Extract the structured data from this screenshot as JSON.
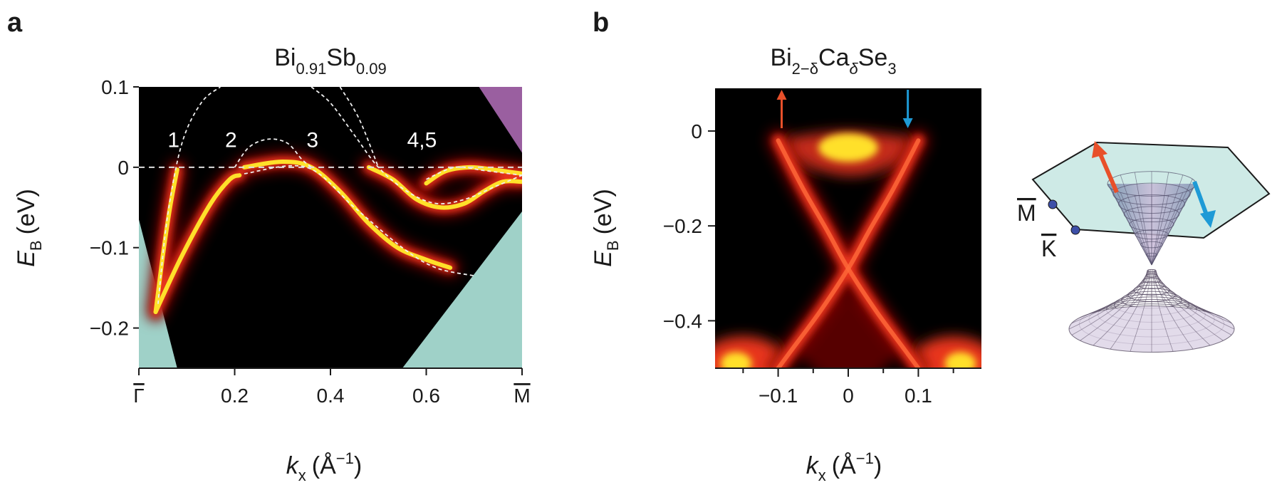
{
  "figure": {
    "panel_a_letter": "a",
    "panel_b_letter": "b",
    "hexagon_labels": {
      "m_bar": "M",
      "k_bar": "K"
    },
    "colors": {
      "background_dark": "#000000",
      "intensity_low": "#7a0000",
      "intensity_mid": "#e8341c",
      "intensity_high": "#ffe02a",
      "bulk_teal": "#9fd1c8",
      "bulk_purple": "#9a5fa0",
      "arrow_orange": "#e8502a",
      "arrow_blue": "#1e9ad6",
      "hex_fill": "#b9e1dc",
      "bz_point_dot": "#3d4fa8"
    }
  },
  "chart_data": [
    {
      "type": "heatmap",
      "panel": "a",
      "title_base1": "Bi",
      "title_sub1": "0.91",
      "title_base2": "Sb",
      "title_sub2": "0.09",
      "xlabel_base": "k",
      "xlabel_sub": "x",
      "xlabel_unit": "(Å",
      "xlabel_exp": "−1",
      "xlabel_close": ")",
      "ylabel_base": "E",
      "ylabel_sub": "B",
      "ylabel_unit": "(eV)",
      "xlim": [
        0.0,
        0.8
      ],
      "ylim": [
        -0.25,
        0.1
      ],
      "x_tick_labels": [
        "Γ",
        "0.2",
        "0.4",
        "0.6",
        "M"
      ],
      "x_ticks": [
        0.0,
        0.2,
        0.4,
        0.6,
        0.8
      ],
      "x_ticks_overbar": [
        true,
        false,
        false,
        false,
        true
      ],
      "y_ticks": [
        0.1,
        0.0,
        -0.1,
        -0.2
      ],
      "y_tick_labels": [
        "0.1",
        "0",
        "−0.1",
        "−0.2"
      ],
      "band_labels": [
        {
          "text": "1",
          "x": 0.06,
          "y": 0.025
        },
        {
          "text": "2",
          "x": 0.18,
          "y": 0.025
        },
        {
          "text": "3",
          "x": 0.35,
          "y": 0.025
        },
        {
          "text": "4,5",
          "x": 0.56,
          "y": 0.025
        }
      ],
      "fermi_level": 0.0,
      "bands": [
        {
          "name": "1",
          "points": [
            [
              0.035,
              -0.18
            ],
            [
              0.05,
              -0.11
            ],
            [
              0.065,
              -0.05
            ],
            [
              0.08,
              -0.003
            ]
          ]
        },
        {
          "name": "2",
          "points": [
            [
              0.035,
              -0.18
            ],
            [
              0.09,
              -0.11
            ],
            [
              0.15,
              -0.045
            ],
            [
              0.19,
              -0.015
            ],
            [
              0.21,
              -0.01
            ]
          ]
        },
        {
          "name": "3",
          "points": [
            [
              0.22,
              0.0
            ],
            [
              0.3,
              0.007
            ],
            [
              0.36,
              0.0
            ],
            [
              0.42,
              -0.03
            ],
            [
              0.48,
              -0.07
            ],
            [
              0.54,
              -0.1
            ],
            [
              0.6,
              -0.115
            ],
            [
              0.65,
              -0.125
            ]
          ]
        },
        {
          "name": "4,5",
          "points": [
            [
              0.48,
              0.0
            ],
            [
              0.53,
              -0.015
            ],
            [
              0.58,
              -0.04
            ],
            [
              0.63,
              -0.05
            ],
            [
              0.68,
              -0.045
            ],
            [
              0.72,
              -0.03
            ],
            [
              0.76,
              -0.018
            ],
            [
              0.8,
              -0.018
            ]
          ]
        },
        {
          "name": "4,5",
          "points": [
            [
              0.6,
              -0.02
            ],
            [
              0.64,
              -0.005
            ],
            [
              0.69,
              0.0
            ],
            [
              0.74,
              -0.003
            ],
            [
              0.8,
              -0.008
            ]
          ]
        }
      ],
      "dashed_guides": [
        {
          "points": [
            [
              0.04,
              -0.17
            ],
            [
              0.06,
              -0.06
            ],
            [
              0.09,
              0.03
            ],
            [
              0.13,
              0.08
            ],
            [
              0.17,
              0.1
            ]
          ]
        },
        {
          "points": [
            [
              0.2,
              0.0
            ],
            [
              0.23,
              0.025
            ],
            [
              0.27,
              0.035
            ],
            [
              0.31,
              0.03
            ],
            [
              0.34,
              0.01
            ],
            [
              0.36,
              0.0
            ]
          ]
        },
        {
          "points": [
            [
              0.22,
              -0.008
            ],
            [
              0.35,
              0.0
            ],
            [
              0.45,
              -0.05
            ],
            [
              0.55,
              -0.1
            ],
            [
              0.62,
              -0.125
            ],
            [
              0.7,
              -0.135
            ]
          ]
        },
        {
          "points": [
            [
              0.36,
              0.1
            ],
            [
              0.4,
              0.08
            ],
            [
              0.45,
              0.04
            ],
            [
              0.5,
              0.0
            ],
            [
              0.56,
              -0.03
            ],
            [
              0.62,
              -0.045
            ],
            [
              0.68,
              -0.04
            ],
            [
              0.74,
              -0.025
            ],
            [
              0.8,
              -0.01
            ]
          ]
        },
        {
          "points": [
            [
              0.42,
              0.1
            ],
            [
              0.46,
              0.06
            ],
            [
              0.5,
              0.0
            ]
          ]
        },
        {
          "points": [
            [
              0.6,
              -0.015
            ],
            [
              0.66,
              0.0
            ],
            [
              0.72,
              -0.004
            ],
            [
              0.8,
              -0.01
            ]
          ]
        }
      ],
      "bulk_regions": [
        {
          "color": "teal",
          "points": [
            [
              0.0,
              -0.25
            ],
            [
              0.0,
              -0.065
            ],
            [
              0.08,
              -0.25
            ]
          ]
        },
        {
          "color": "teal",
          "points": [
            [
              0.55,
              -0.25
            ],
            [
              0.8,
              -0.25
            ],
            [
              0.8,
              -0.055
            ]
          ]
        },
        {
          "color": "purple",
          "points": [
            [
              0.71,
              0.1
            ],
            [
              0.8,
              0.1
            ],
            [
              0.8,
              0.018
            ]
          ]
        }
      ]
    },
    {
      "type": "heatmap",
      "panel": "b",
      "title_base1": "Bi",
      "title_sub1": "2−δ",
      "title_base2": "Ca",
      "title_sub2": "δ",
      "title_base3": "Se",
      "title_sub3": "3",
      "xlabel_base": "k",
      "xlabel_sub": "x",
      "xlabel_unit": "(Å",
      "xlabel_exp": "−1",
      "xlabel_close": ")",
      "ylabel_base": "E",
      "ylabel_sub": "B",
      "ylabel_unit": "(eV)",
      "xlim": [
        -0.19,
        0.19
      ],
      "ylim": [
        -0.5,
        0.09
      ],
      "x_ticks": [
        -0.1,
        0.0,
        0.1
      ],
      "x_tick_labels": [
        "−0.1",
        "0",
        "0.1"
      ],
      "x_minor_ticks": [
        -0.15,
        -0.05,
        0.05,
        0.15
      ],
      "y_ticks": [
        0.0,
        -0.2,
        -0.4
      ],
      "y_tick_labels": [
        "0",
        "−0.2",
        "−0.4"
      ],
      "dirac_point_energy": -0.29,
      "dirac_cone_branches": [
        {
          "name": "left",
          "points": [
            [
              -0.1,
              -0.02
            ],
            [
              -0.065,
              -0.12
            ],
            [
              -0.03,
              -0.21
            ],
            [
              0.0,
              -0.29
            ],
            [
              0.04,
              -0.38
            ],
            [
              0.08,
              -0.46
            ],
            [
              0.1,
              -0.5
            ]
          ]
        },
        {
          "name": "right",
          "points": [
            [
              0.1,
              -0.02
            ],
            [
              0.065,
              -0.12
            ],
            [
              0.03,
              -0.21
            ],
            [
              0.0,
              -0.29
            ],
            [
              -0.04,
              -0.38
            ],
            [
              -0.08,
              -0.46
            ],
            [
              -0.1,
              -0.5
            ]
          ]
        }
      ],
      "arrows": [
        {
          "color": "orange",
          "x": -0.095,
          "direction": "up"
        },
        {
          "color": "blue",
          "x": 0.085,
          "direction": "down"
        }
      ]
    }
  ]
}
